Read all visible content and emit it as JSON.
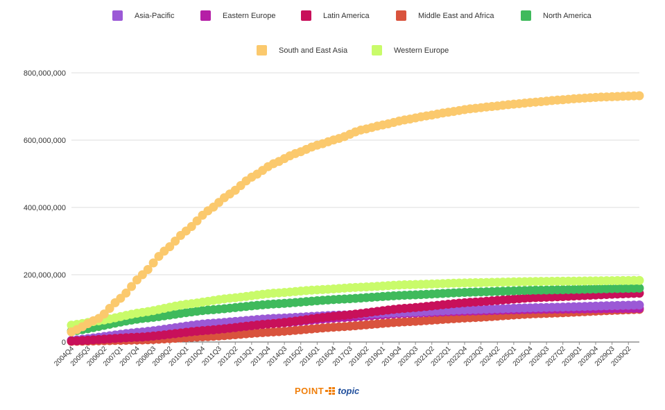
{
  "chart_data": {
    "type": "scatter",
    "title": "",
    "xlabel": "",
    "ylabel": "",
    "ylim": [
      0,
      800000000
    ],
    "y_ticks": [
      0,
      200000000,
      400000000,
      600000000,
      800000000
    ],
    "y_tick_labels": [
      "0",
      "200,000,000",
      "400,000,000",
      "600,000,000",
      "800,000,000"
    ],
    "x_start": "2004Q4",
    "x_end": "2030Q4",
    "x_tick_labels": [
      "2004Q4",
      "2005Q3",
      "2006Q2",
      "2007Q1",
      "2007Q4",
      "2008Q3",
      "2009Q2",
      "2010Q1",
      "2010Q4",
      "2011Q3",
      "2012Q2",
      "2013Q1",
      "2013Q4",
      "2014Q3",
      "2015Q2",
      "2016Q1",
      "2016Q4",
      "2017Q3",
      "2018Q2",
      "2019Q1",
      "2019Q4",
      "2020Q3",
      "2021Q2",
      "2022Q1",
      "2022Q4",
      "2023Q3",
      "2024Q2",
      "2025Q1",
      "2025Q4",
      "2026Q3",
      "2027Q2",
      "2028Q1",
      "2028Q4",
      "2029Q3",
      "2030Q2"
    ],
    "grid": "horizontal",
    "legend_position": "top",
    "series": [
      {
        "name": "Asia-Pacific",
        "color": "#9b59d6",
        "points": [
          [
            "2004Q4",
            5000000
          ],
          [
            "2008Q1",
            30000000
          ],
          [
            "2011Q1",
            55000000
          ],
          [
            "2014Q1",
            70000000
          ],
          [
            "2017Q1",
            80000000
          ],
          [
            "2020Q1",
            88000000
          ],
          [
            "2023Q1",
            96000000
          ],
          [
            "2026Q1",
            102000000
          ],
          [
            "2030Q4",
            110000000
          ]
        ]
      },
      {
        "name": "Eastern Europe",
        "color": "#b51fa6",
        "points": [
          [
            "2004Q4",
            4000000
          ],
          [
            "2008Q1",
            15000000
          ],
          [
            "2011Q1",
            35000000
          ],
          [
            "2014Q1",
            55000000
          ],
          [
            "2017Q1",
            72000000
          ],
          [
            "2020Q1",
            85000000
          ],
          [
            "2023Q1",
            92000000
          ],
          [
            "2026Q1",
            97000000
          ],
          [
            "2030Q4",
            100000000
          ]
        ]
      },
      {
        "name": "Latin America",
        "color": "#c8105a",
        "points": [
          [
            "2004Q4",
            3000000
          ],
          [
            "2008Q1",
            15000000
          ],
          [
            "2011Q1",
            35000000
          ],
          [
            "2014Q1",
            55000000
          ],
          [
            "2017Q1",
            78000000
          ],
          [
            "2020Q1",
            100000000
          ],
          [
            "2023Q1",
            118000000
          ],
          [
            "2026Q1",
            132000000
          ],
          [
            "2030Q4",
            145000000
          ]
        ]
      },
      {
        "name": "Middle East and Africa",
        "color": "#d9533d",
        "points": [
          [
            "2004Q4",
            2000000
          ],
          [
            "2008Q1",
            6000000
          ],
          [
            "2011Q1",
            16000000
          ],
          [
            "2014Q1",
            30000000
          ],
          [
            "2017Q1",
            45000000
          ],
          [
            "2020Q1",
            60000000
          ],
          [
            "2023Q1",
            72000000
          ],
          [
            "2026Q1",
            84000000
          ],
          [
            "2030Q4",
            97000000
          ]
        ]
      },
      {
        "name": "North America",
        "color": "#3fba5c",
        "points": [
          [
            "2004Q4",
            32000000
          ],
          [
            "2008Q1",
            70000000
          ],
          [
            "2011Q1",
            95000000
          ],
          [
            "2014Q1",
            113000000
          ],
          [
            "2017Q1",
            127000000
          ],
          [
            "2020Q1",
            139000000
          ],
          [
            "2023Q1",
            148000000
          ],
          [
            "2026Q1",
            154000000
          ],
          [
            "2030Q4",
            160000000
          ]
        ]
      },
      {
        "name": "South and East Asia",
        "color": "#fbc96d",
        "points": [
          [
            "2004Q4",
            30000000
          ],
          [
            "2006Q1",
            70000000
          ],
          [
            "2007Q1",
            130000000
          ],
          [
            "2008Q1",
            200000000
          ],
          [
            "2009Q1",
            270000000
          ],
          [
            "2010Q1",
            330000000
          ],
          [
            "2011Q1",
            390000000
          ],
          [
            "2012Q1",
            440000000
          ],
          [
            "2013Q1",
            490000000
          ],
          [
            "2014Q1",
            530000000
          ],
          [
            "2015Q1",
            560000000
          ],
          [
            "2016Q1",
            585000000
          ],
          [
            "2017Q1",
            605000000
          ],
          [
            "2018Q1",
            630000000
          ],
          [
            "2019Q1",
            645000000
          ],
          [
            "2020Q1",
            660000000
          ],
          [
            "2021Q1",
            672000000
          ],
          [
            "2022Q1",
            683000000
          ],
          [
            "2023Q1",
            693000000
          ],
          [
            "2024Q1",
            700000000
          ],
          [
            "2025Q1",
            707000000
          ],
          [
            "2026Q1",
            713000000
          ],
          [
            "2027Q1",
            719000000
          ],
          [
            "2028Q1",
            724000000
          ],
          [
            "2029Q1",
            728000000
          ],
          [
            "2030Q4",
            732000000
          ]
        ]
      },
      {
        "name": "Western Europe",
        "color": "#c9fb6a",
        "points": [
          [
            "2004Q4",
            50000000
          ],
          [
            "2006Q1",
            63000000
          ],
          [
            "2008Q1",
            88000000
          ],
          [
            "2010Q1",
            112000000
          ],
          [
            "2012Q1",
            130000000
          ],
          [
            "2014Q1",
            145000000
          ],
          [
            "2016Q1",
            155000000
          ],
          [
            "2018Q1",
            163000000
          ],
          [
            "2020Q1",
            170000000
          ],
          [
            "2023Q1",
            176000000
          ],
          [
            "2026Q1",
            180000000
          ],
          [
            "2030Q4",
            183000000
          ]
        ]
      }
    ]
  },
  "footer": {
    "logo_point": "POINT",
    "logo_topic": "topic"
  }
}
